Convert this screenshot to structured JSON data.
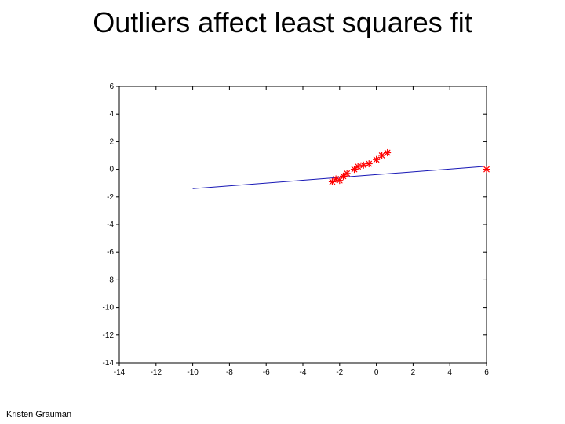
{
  "title": "Outliers affect least squares fit",
  "credit": "Kristen Grauman",
  "chart": {
    "type": "scatter-with-line",
    "background_color": "#ffffff",
    "axis_box_color": "#000000",
    "axis_box_stroke": 1,
    "tick_len": 4,
    "tick_color": "#000000",
    "tick_label_color": "#000000",
    "tick_label_fontsize": 10,
    "xlim": [
      -14,
      6
    ],
    "ylim": [
      -14,
      6
    ],
    "xticks": [
      -14,
      -12,
      -10,
      -8,
      -6,
      -4,
      -2,
      0,
      2,
      4,
      6
    ],
    "yticks": [
      -14,
      -12,
      -10,
      -8,
      -6,
      -4,
      -2,
      0,
      2,
      4,
      6
    ],
    "line": {
      "x1": -10,
      "y1": -1.4,
      "x2": 5.8,
      "y2": 0.2,
      "color": "#1616b5",
      "width": 1
    },
    "marker": {
      "symbol": "asterisk",
      "size": 4,
      "stroke_width": 1.2,
      "color": "#ff0000"
    },
    "points": [
      {
        "x": -2.4,
        "y": -0.9
      },
      {
        "x": -2.2,
        "y": -0.7
      },
      {
        "x": -2.0,
        "y": -0.8
      },
      {
        "x": -1.8,
        "y": -0.5
      },
      {
        "x": -1.6,
        "y": -0.3
      },
      {
        "x": -1.2,
        "y": 0.0
      },
      {
        "x": -1.0,
        "y": 0.2
      },
      {
        "x": -0.7,
        "y": 0.3
      },
      {
        "x": -0.4,
        "y": 0.4
      },
      {
        "x": 0.0,
        "y": 0.7
      },
      {
        "x": 0.3,
        "y": 1.0
      },
      {
        "x": 0.6,
        "y": 1.2
      },
      {
        "x": 6.0,
        "y": 0.0
      }
    ]
  }
}
